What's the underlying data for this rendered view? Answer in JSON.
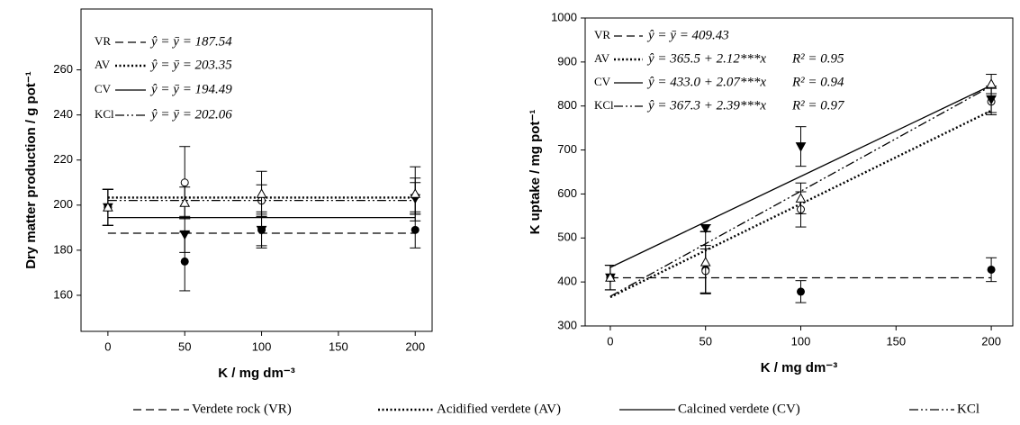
{
  "chart_data": [
    {
      "type": "scatter-fit",
      "ylabel": "Dry matter production / g pot⁻¹",
      "xlabel": "K / mg dm⁻³",
      "x": [
        0,
        50,
        100,
        200
      ],
      "xlim": [
        -17.5,
        211
      ],
      "xticks": [
        0,
        50,
        100,
        150,
        200
      ],
      "ylim": [
        144,
        287
      ],
      "yticks": [
        160,
        180,
        200,
        220,
        240,
        260
      ],
      "series": [
        {
          "abbr": "VR",
          "line_style": "dashed",
          "marker": "filled-circle",
          "color": "#000",
          "values": [
            199,
            175,
            189,
            189
          ],
          "errors": [
            8,
            13,
            8,
            8
          ],
          "mean": 187.54,
          "equation": "ŷ = ȳ = 187.54"
        },
        {
          "abbr": "AV",
          "line_style": "dotted",
          "marker": "open-circle",
          "color": "#000",
          "values": [
            199,
            210,
            202,
            204
          ],
          "errors": [
            8,
            16,
            7,
            8
          ],
          "mean": 203.35,
          "equation": "ŷ = ȳ = 203.35"
        },
        {
          "abbr": "CV",
          "line_style": "solid",
          "marker": "filled-triangle-down",
          "color": "#000",
          "values": [
            199,
            187,
            189,
            203
          ],
          "errors": [
            8,
            8,
            7,
            7
          ],
          "mean": 194.49,
          "equation": "ŷ = ȳ = 194.49"
        },
        {
          "abbr": "KCl",
          "line_style": "dash-dot-dot",
          "marker": "open-triangle-up",
          "color": "#000",
          "values": [
            199,
            201,
            205,
            205
          ],
          "errors": [
            8,
            7,
            10,
            12
          ],
          "mean": 202.06,
          "equation": "ŷ = ȳ = 202.06"
        }
      ]
    },
    {
      "type": "scatter-fit",
      "ylabel": "K uptake / mg pot⁻¹",
      "xlabel": "K / mg dm⁻³",
      "x": [
        0,
        50,
        100,
        200
      ],
      "xlim": [
        -13.2,
        211.3
      ],
      "xticks": [
        0,
        50,
        100,
        150,
        200
      ],
      "ylim": [
        300,
        1000
      ],
      "yticks": [
        300,
        400,
        500,
        600,
        700,
        800,
        900,
        1000
      ],
      "series": [
        {
          "abbr": "VR",
          "line_style": "dashed",
          "marker": "filled-circle",
          "color": "#000",
          "values": [
            410,
            428,
            378,
            428
          ],
          "errors": [
            28,
            55,
            25,
            27
          ],
          "mean": 409.43,
          "equation": "ŷ = ȳ = 409.43"
        },
        {
          "abbr": "AV",
          "line_style": "dotted",
          "marker": "open-circle",
          "color": "#000",
          "values": [
            410,
            425,
            565,
            810
          ],
          "errors": [
            28,
            50,
            40,
            30
          ],
          "intercept": 365.5,
          "slope": 2.12,
          "equation": "ŷ = 365.5 + 2.12***x",
          "r2": "R² = 0.95"
        },
        {
          "abbr": "CV",
          "line_style": "solid",
          "marker": "filled-triangle-down",
          "color": "#000",
          "values": [
            410,
            522,
            708,
            815
          ],
          "errors": [
            28,
            8,
            45,
            30
          ],
          "intercept": 433.0,
          "slope": 2.07,
          "equation": "ŷ = 433.0 + 2.07***x",
          "r2": "R² = 0.94"
        },
        {
          "abbr": "KCl",
          "line_style": "dash-dot-dot",
          "marker": "open-triangle-up",
          "color": "#000",
          "values": [
            410,
            445,
            590,
            850
          ],
          "errors": [
            28,
            70,
            35,
            22
          ],
          "intercept": 367.3,
          "slope": 2.39,
          "equation": "ŷ = 367.3 + 2.39***x",
          "r2": "R² = 0.97"
        }
      ]
    }
  ],
  "legend": [
    {
      "label": "Verdete rock (VR)",
      "line_style": "dashed"
    },
    {
      "label": "Acidified verdete (AV)",
      "line_style": "dotted"
    },
    {
      "label": "Calcined verdete (CV)",
      "line_style": "solid"
    },
    {
      "label": "KCl",
      "line_style": "dash-dot-dot"
    }
  ]
}
